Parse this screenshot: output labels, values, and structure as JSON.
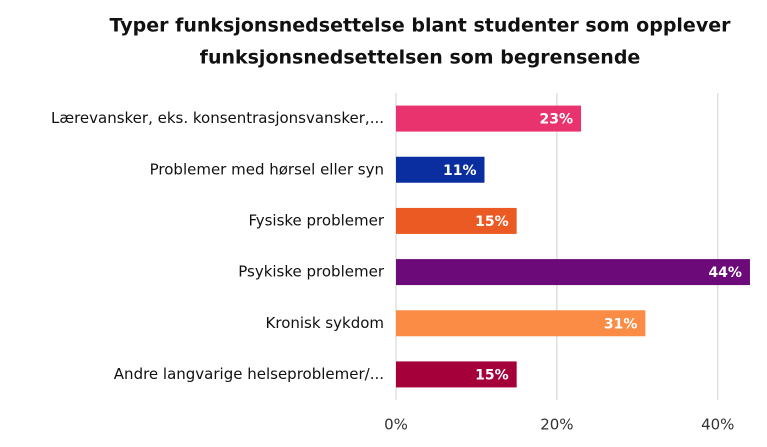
{
  "chart_data": {
    "type": "bar",
    "orientation": "horizontal",
    "title": [
      "Typer funksjonsnedsettelse blant studenter som opplever",
      "funksjonsnedsettelsen som begrensende"
    ],
    "categories": [
      "Lærevansker, eks. konsentrasjonsvansker,...",
      "Problemer med hørsel eller syn",
      "Fysiske problemer",
      "Psykiske problemer",
      "Kronisk sykdom",
      "Andre langvarige helseproblemer/..."
    ],
    "values": [
      23,
      11,
      15,
      44,
      31,
      15
    ],
    "value_labels": [
      "23%",
      "11%",
      "15%",
      "44%",
      "31%",
      "15%"
    ],
    "colors": [
      "#e8336e",
      "#0a2ea0",
      "#ec5a24",
      "#6b0a78",
      "#fb8c46",
      "#a5003a"
    ],
    "xlim": [
      0,
      45
    ],
    "xticks": [
      {
        "value": 0,
        "label": "0%"
      },
      {
        "value": 20,
        "label": "20%"
      },
      {
        "value": 40,
        "label": "40%"
      }
    ],
    "grid": true
  }
}
